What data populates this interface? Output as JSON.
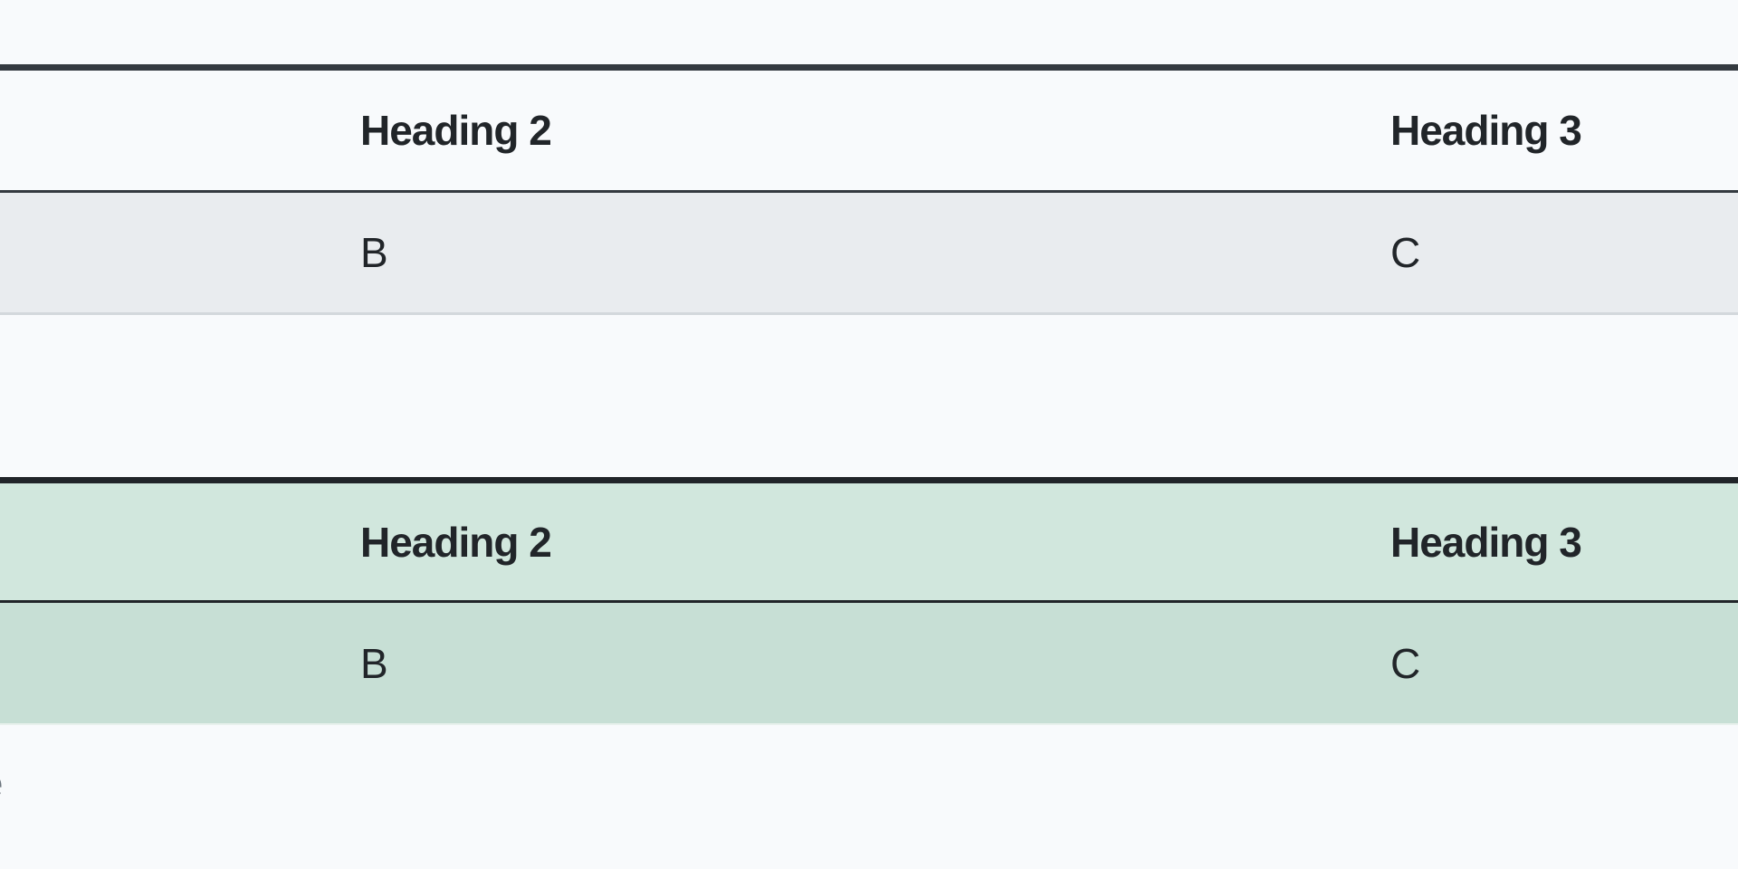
{
  "tables": [
    {
      "variant": "default",
      "headers": [
        "Heading 2",
        "Heading 3"
      ],
      "rows": [
        [
          "B",
          "C"
        ]
      ],
      "colors": {
        "header_bg": "#f8fafc",
        "row_bg": "#e9ecef",
        "border": "#343a40"
      }
    },
    {
      "variant": "success",
      "headers": [
        "Heading 2",
        "Heading 3"
      ],
      "rows": [
        [
          "B",
          "C"
        ]
      ],
      "colors": {
        "header_bg": "#d1e7dd",
        "row_bg": "#c7dfd5",
        "border": "#212529"
      }
    }
  ],
  "caption_fragment": "e"
}
